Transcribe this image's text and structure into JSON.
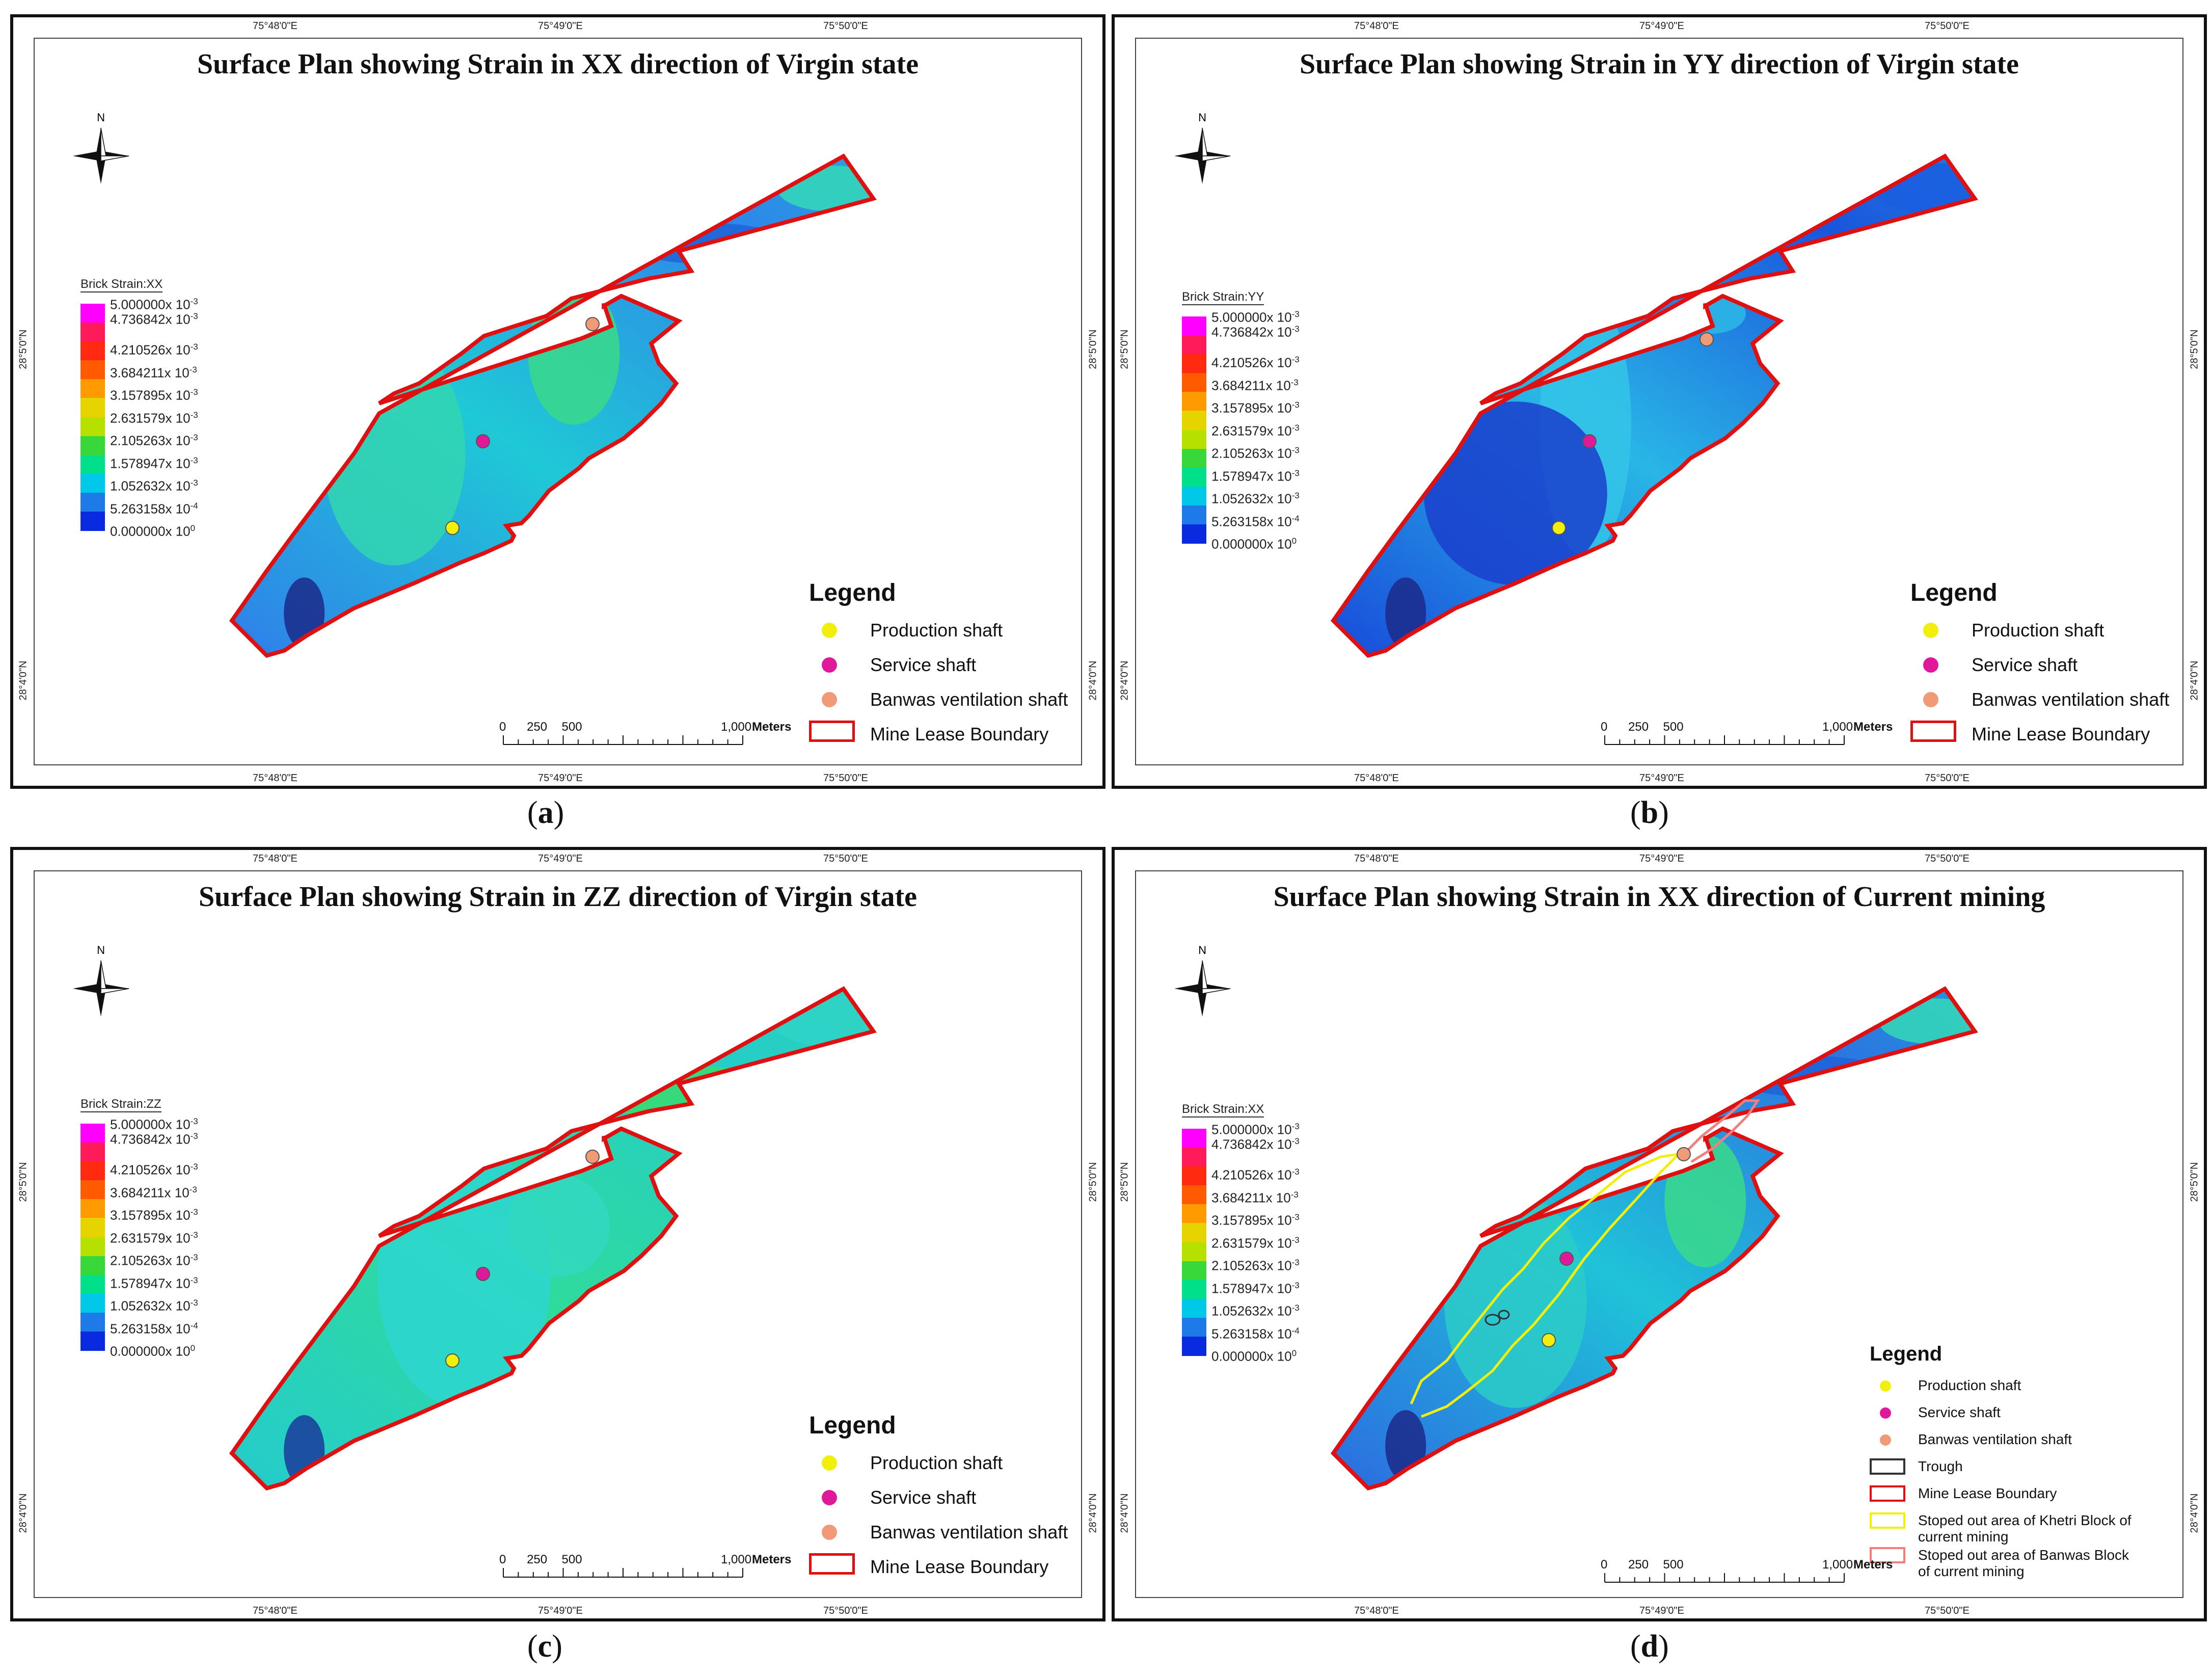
{
  "panels": [
    {
      "id": "a",
      "title": "Surface Plan showing Strain in XX direction of Virgin state",
      "colorbar_title": "Brick Strain:XX",
      "caption": "a",
      "variant": "xx_virgin",
      "legend_style": "large"
    },
    {
      "id": "b",
      "title": "Surface Plan showing Strain in YY direction of Virgin state",
      "colorbar_title": "Brick Strain:YY",
      "caption": "b",
      "variant": "yy_virgin",
      "legend_style": "large"
    },
    {
      "id": "c",
      "title": "Surface Plan showing Strain in ZZ direction of Virgin state",
      "colorbar_title": "Brick Strain:ZZ",
      "caption": "c",
      "variant": "zz_virgin",
      "legend_style": "large"
    },
    {
      "id": "d",
      "title": "Surface Plan showing Strain in XX direction of Current mining",
      "colorbar_title": "Brick Strain:XX",
      "caption": "d",
      "variant": "xx_current",
      "legend_style": "small"
    }
  ],
  "graticule": {
    "top": [
      "75°48'0\"E",
      "75°49'0\"E",
      "75°50'0\"E"
    ],
    "bottom": [
      "75°48'0\"E",
      "75°49'0\"E",
      "75°50'0\"E"
    ],
    "left": [
      "28°5'0\"N",
      "28°4'0\"N"
    ],
    "right": [
      "28°5'0\"N",
      "28°4'0\"N"
    ]
  },
  "colorbar_labels": [
    {
      "base": "5.000000x 10",
      "exp": "-3"
    },
    {
      "base": "4.736842x 10",
      "exp": "-3"
    },
    {
      "base": "4.210526x 10",
      "exp": "-3"
    },
    {
      "base": "3.684211x 10",
      "exp": "-3"
    },
    {
      "base": "3.157895x 10",
      "exp": "-3"
    },
    {
      "base": "2.631579x 10",
      "exp": "-3"
    },
    {
      "base": "2.105263x 10",
      "exp": "-3"
    },
    {
      "base": "1.578947x 10",
      "exp": "-3"
    },
    {
      "base": "1.052632x 10",
      "exp": "-3"
    },
    {
      "base": "5.263158x 10",
      "exp": "-4"
    },
    {
      "base": "0.000000x 10",
      "exp": "0"
    }
  ],
  "colorbar_colors": [
    "#ff00ff",
    "#ff1a5a",
    "#ff2a10",
    "#ff5a00",
    "#ff9a00",
    "#e6d400",
    "#b5e000",
    "#39d83a",
    "#00e08a",
    "#00c8e8",
    "#1e7ae8",
    "#0a2ae0"
  ],
  "legend": {
    "title": "Legend",
    "items": [
      {
        "label": "Production shaft",
        "symbol": "dot",
        "color": "#f2ef0a"
      },
      {
        "label": "Service shaft",
        "symbol": "dot",
        "color": "#e0189a"
      },
      {
        "label": "Banwas ventilation shaft",
        "symbol": "dot",
        "color": "#f09a78"
      },
      {
        "label": "Mine Lease Boundary",
        "symbol": "rect",
        "color": "#e01010"
      }
    ],
    "items_d": [
      {
        "label": "Production shaft",
        "symbol": "dot",
        "color": "#f2ef0a"
      },
      {
        "label": "Service shaft",
        "symbol": "dot",
        "color": "#e0189a"
      },
      {
        "label": "Banwas ventilation shaft",
        "symbol": "dot",
        "color": "#f09a78"
      },
      {
        "label": "Trough",
        "symbol": "rect",
        "color": "#333333"
      },
      {
        "label": "Mine Lease Boundary",
        "symbol": "rect",
        "color": "#e01010"
      },
      {
        "label": "Stoped out area of Khetri Block of",
        "label2": "current mining",
        "symbol": "rect",
        "color": "#f2ef0a"
      },
      {
        "label": "Stoped out area of Banwas Block",
        "label2": "of current mining",
        "symbol": "rect",
        "color": "#f08080"
      }
    ]
  },
  "scalebar": {
    "labels": [
      "0",
      "250",
      "500",
      "1,000"
    ],
    "unit": "Meters"
  },
  "north_label": "N"
}
